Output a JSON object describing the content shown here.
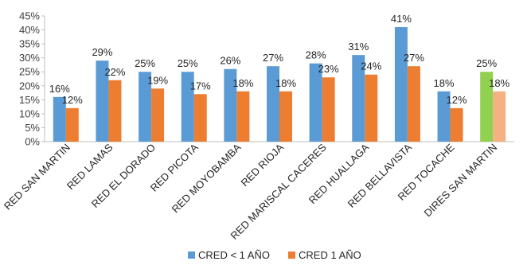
{
  "chart_data": {
    "type": "bar",
    "categories": [
      "RED SAN MARTIN",
      "RED LAMAS",
      "RED EL DORADO",
      "RED PICOTA",
      "RED MOYOBAMBA",
      "RED RIOJA",
      "RED MARISCAL CACERES",
      "RED HUALLAGA",
      "RED BELLAVISTA",
      "RED TOCACHE",
      "DIRES SAN MARTIN"
    ],
    "series": [
      {
        "name": "CRED < 1 AÑO",
        "color": "#5B9BD5",
        "values": [
          16,
          29,
          25,
          25,
          26,
          27,
          28,
          31,
          41,
          18,
          25
        ],
        "labels": [
          "16%",
          "29%",
          "25%",
          "25%",
          "26%",
          "27%",
          "28%",
          "31%",
          "41%",
          "18%",
          "25%"
        ]
      },
      {
        "name": "CRED 1 AÑO",
        "color": "#ED7D31",
        "values": [
          12,
          22,
          19,
          17,
          18,
          18,
          23,
          24,
          27,
          12,
          18
        ],
        "labels": [
          "12%",
          "22%",
          "19%",
          "17%",
          "18%",
          "18%",
          "23%",
          "24%",
          "27%",
          "12%",
          "18%"
        ]
      }
    ],
    "highlight": {
      "category_index": 10,
      "colors": [
        "#92D050",
        "#F4B183"
      ]
    },
    "title": "",
    "xlabel": "",
    "ylabel": "",
    "ylim": [
      0,
      45
    ],
    "yticks": [
      0,
      5,
      10,
      15,
      20,
      25,
      30,
      35,
      40,
      45
    ],
    "ytick_labels": [
      "0%",
      "5%",
      "10%",
      "15%",
      "20%",
      "25%",
      "30%",
      "35%",
      "40%",
      "45%"
    ],
    "grid": false,
    "legend": "bottom"
  }
}
